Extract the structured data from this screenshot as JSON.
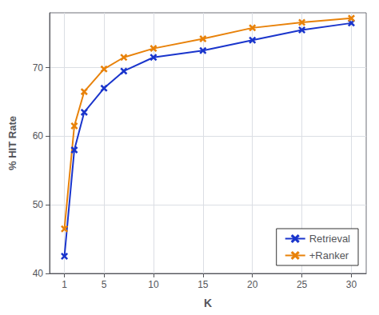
{
  "chart_data": {
    "type": "line",
    "xlabel": "K",
    "ylabel": "% HIT Rate",
    "x": [
      1,
      2,
      3,
      5,
      7,
      10,
      15,
      20,
      25,
      30
    ],
    "series": [
      {
        "name": "Retrieval",
        "color": "#1a35cc",
        "marker": "x",
        "values": [
          42.5,
          58.0,
          63.5,
          67.0,
          69.5,
          71.5,
          72.5,
          74.0,
          75.5,
          76.5
        ]
      },
      {
        "name": "+Ranker",
        "color": "#e8820a",
        "marker": "x",
        "values": [
          46.5,
          61.5,
          66.5,
          69.8,
          71.5,
          72.8,
          74.2,
          75.8,
          76.6,
          77.2
        ]
      }
    ],
    "xlim": [
      -0.5,
      31.5
    ],
    "xticks": [
      1,
      5,
      10,
      15,
      20,
      25,
      30
    ],
    "ylim": [
      40,
      78
    ],
    "yticks": [
      40,
      50,
      60,
      70
    ],
    "grid": true,
    "legend": "lower right"
  }
}
